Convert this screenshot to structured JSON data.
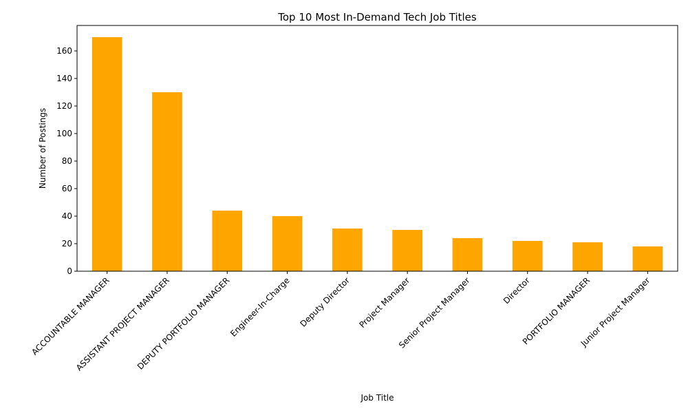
{
  "chart_data": {
    "type": "bar",
    "title": "Top 10 Most In-Demand Tech Job Titles",
    "xlabel": "Job Title",
    "ylabel": "Number of Postings",
    "categories": [
      "ACCOUNTABLE MANAGER",
      "ASSISTANT PROJECT MANAGER",
      "DEPUTY PORTFOLIO MANAGER",
      "Engineer-In-Charge",
      "Deputy Director",
      "Project Manager",
      "Senior Project Manager",
      "Director",
      "PORTFOLIO MANAGER",
      "Junior Project Manager"
    ],
    "values": [
      170,
      130,
      44,
      40,
      31,
      30,
      24,
      22,
      21,
      18
    ],
    "ylim": [
      0,
      178.5
    ],
    "yticks": [
      0,
      20,
      40,
      60,
      80,
      100,
      120,
      140,
      160
    ],
    "bar_color": "#ffa500",
    "grid": false,
    "legend": "none"
  }
}
